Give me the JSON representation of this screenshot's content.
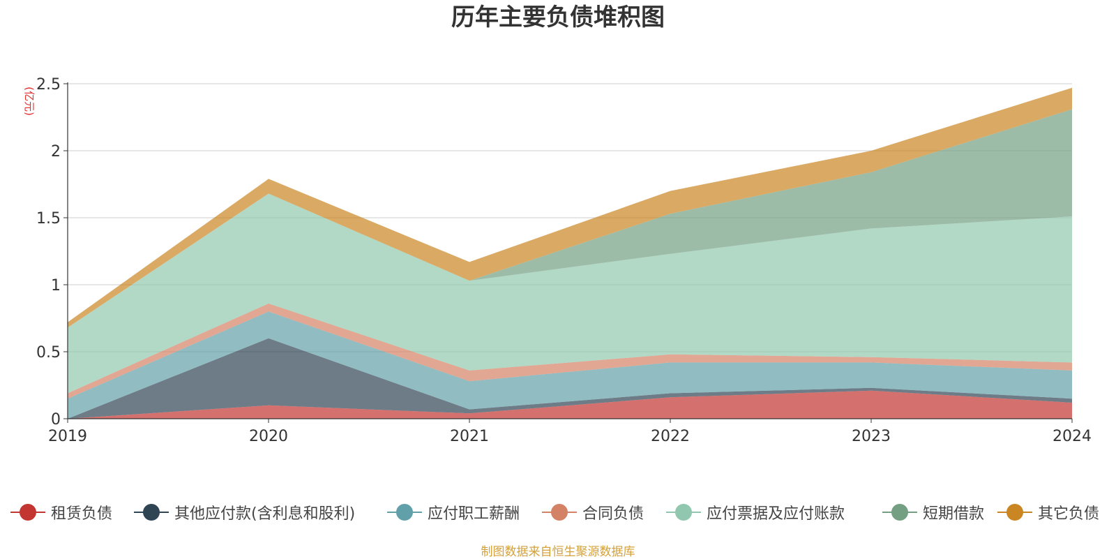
{
  "chart_data": {
    "type": "area",
    "stacked": true,
    "title": "历年主要负债堆积图",
    "ylabel": "(亿元)",
    "xlabel": "",
    "ylim": [
      0,
      2.5
    ],
    "yticks": [
      "0",
      "0.5",
      "1",
      "1.5",
      "2",
      "2.5"
    ],
    "categories": [
      "2019",
      "2020",
      "2021",
      "2022",
      "2023",
      "2024"
    ],
    "grid": true,
    "legend_position": "bottom",
    "series": [
      {
        "name": "租赁负债",
        "color": "#c23531",
        "values": [
          0.0,
          0.1,
          0.04,
          0.16,
          0.21,
          0.12
        ]
      },
      {
        "name": "其他应付款(含利息和股利)",
        "color": "#2f4554",
        "values": [
          0.0,
          0.5,
          0.03,
          0.03,
          0.02,
          0.03
        ]
      },
      {
        "name": "应付职工薪酬",
        "color": "#61a0a8",
        "values": [
          0.15,
          0.2,
          0.21,
          0.23,
          0.19,
          0.21
        ]
      },
      {
        "name": "合同负债",
        "color": "#d48265",
        "values": [
          0.04,
          0.06,
          0.08,
          0.06,
          0.04,
          0.06
        ]
      },
      {
        "name": "应付票据及应付账款",
        "color": "#91c7ae",
        "values": [
          0.49,
          0.82,
          0.67,
          0.75,
          0.96,
          1.09
        ]
      },
      {
        "name": "短期借款",
        "color": "#749f83",
        "values": [
          0.0,
          0.0,
          0.0,
          0.3,
          0.42,
          0.8
        ]
      },
      {
        "name": "其它负债",
        "color": "#ca8622",
        "values": [
          0.04,
          0.11,
          0.14,
          0.17,
          0.16,
          0.16
        ]
      }
    ]
  },
  "footer": {
    "source": "制图数据来自恒生聚源数据库"
  }
}
